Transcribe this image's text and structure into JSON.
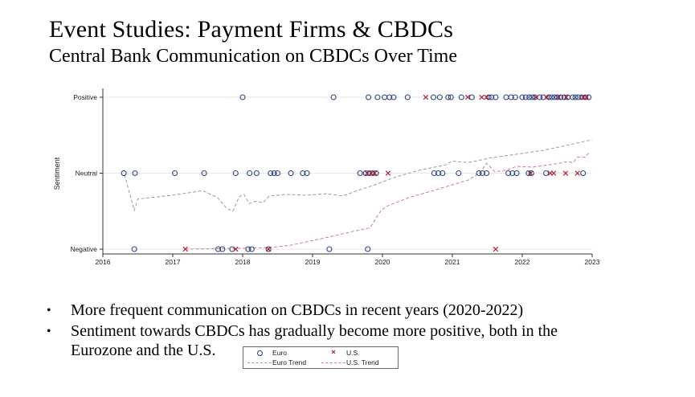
{
  "slide": {
    "title": "Event Studies: Payment Firms & CBDCs",
    "subtitle": "Central Bank Communication on CBDCs Over Time"
  },
  "bullets": [
    "More frequent communication on CBDCs in recent years (2020-2022)",
    "Sentiment towards CBDCs has gradually become more positive, both in the Eurozone and the U.S."
  ],
  "chart_data": {
    "type": "scatter",
    "title": "",
    "xlabel": "",
    "ylabel": "Sentiment",
    "x_ticks": [
      2016,
      2017,
      2018,
      2019,
      2020,
      2021,
      2022,
      2023
    ],
    "y_tick_labels": [
      "Negative",
      "Neutral",
      "Positive"
    ],
    "y_tick_values": [
      0,
      1,
      2
    ],
    "xlim": [
      2015.9,
      2023.05
    ],
    "ylim": [
      -0.1,
      2.12
    ],
    "grid": true,
    "legend_position": "bottom-center-outside",
    "colors": {
      "euro": "#2b4680",
      "us": "#b02437",
      "euro_trend": "#9b9b9b",
      "us_trend": "#c9808d",
      "axis": "#333333",
      "gridline": "#e4dede"
    },
    "legend": {
      "entries": [
        {
          "label": "Euro",
          "marker": "circle"
        },
        {
          "label": "U.S.",
          "marker": "x"
        },
        {
          "label": "Euro Trend",
          "marker": "dash-gray"
        },
        {
          "label": "U.S. Trend",
          "marker": "dash-red"
        }
      ]
    },
    "series": [
      {
        "name": "Euro",
        "type": "scatter",
        "marker": "circle",
        "color": "#2b4680",
        "points": [
          [
            2016.3,
            1
          ],
          [
            2016.45,
            0
          ],
          [
            2016.46,
            1
          ],
          [
            2017.03,
            1
          ],
          [
            2017.45,
            1
          ],
          [
            2017.65,
            0
          ],
          [
            2017.71,
            0
          ],
          [
            2017.85,
            0
          ],
          [
            2017.9,
            1
          ],
          [
            2018.0,
            2
          ],
          [
            2018.08,
            0
          ],
          [
            2018.1,
            1
          ],
          [
            2018.13,
            0
          ],
          [
            2018.2,
            1
          ],
          [
            2018.37,
            0
          ],
          [
            2018.4,
            1
          ],
          [
            2018.45,
            1
          ],
          [
            2018.5,
            1
          ],
          [
            2018.69,
            1
          ],
          [
            2018.86,
            1
          ],
          [
            2018.92,
            1
          ],
          [
            2019.24,
            0
          ],
          [
            2019.3,
            2
          ],
          [
            2019.68,
            1
          ],
          [
            2019.76,
            1
          ],
          [
            2019.79,
            0
          ],
          [
            2019.8,
            2
          ],
          [
            2019.81,
            1
          ],
          [
            2019.86,
            1
          ],
          [
            2019.91,
            1
          ],
          [
            2019.93,
            2
          ],
          [
            2020.03,
            2
          ],
          [
            2020.1,
            2
          ],
          [
            2020.16,
            2
          ],
          [
            2020.36,
            2
          ],
          [
            2020.73,
            2
          ],
          [
            2020.74,
            1
          ],
          [
            2020.8,
            1
          ],
          [
            2020.82,
            2
          ],
          [
            2020.86,
            1
          ],
          [
            2020.94,
            2
          ],
          [
            2020.98,
            2
          ],
          [
            2021.09,
            1
          ],
          [
            2021.13,
            2
          ],
          [
            2021.28,
            2
          ],
          [
            2021.38,
            1
          ],
          [
            2021.43,
            1
          ],
          [
            2021.49,
            1
          ],
          [
            2021.52,
            2
          ],
          [
            2021.56,
            2
          ],
          [
            2021.62,
            2
          ],
          [
            2021.77,
            2
          ],
          [
            2021.8,
            1
          ],
          [
            2021.84,
            2
          ],
          [
            2021.86,
            1
          ],
          [
            2021.9,
            2
          ],
          [
            2021.92,
            1
          ],
          [
            2022.0,
            2
          ],
          [
            2022.05,
            2
          ],
          [
            2022.09,
            1
          ],
          [
            2022.1,
            2
          ],
          [
            2022.13,
            1
          ],
          [
            2022.14,
            2
          ],
          [
            2022.18,
            2
          ],
          [
            2022.25,
            2
          ],
          [
            2022.3,
            2
          ],
          [
            2022.34,
            1
          ],
          [
            2022.38,
            2
          ],
          [
            2022.42,
            2
          ],
          [
            2022.46,
            2
          ],
          [
            2022.5,
            2
          ],
          [
            2022.55,
            2
          ],
          [
            2022.6,
            2
          ],
          [
            2022.65,
            2
          ],
          [
            2022.72,
            2
          ],
          [
            2022.76,
            2
          ],
          [
            2022.8,
            2
          ],
          [
            2022.85,
            2
          ],
          [
            2022.87,
            1
          ],
          [
            2022.9,
            2
          ],
          [
            2022.95,
            2
          ]
        ]
      },
      {
        "name": "U.S.",
        "type": "scatter",
        "marker": "x",
        "color": "#b02437",
        "points": [
          [
            2017.18,
            0
          ],
          [
            2017.9,
            0
          ],
          [
            2018.37,
            0
          ],
          [
            2019.78,
            1
          ],
          [
            2019.84,
            1
          ],
          [
            2019.89,
            1
          ],
          [
            2020.08,
            1
          ],
          [
            2020.62,
            2
          ],
          [
            2021.22,
            2
          ],
          [
            2021.42,
            2
          ],
          [
            2021.49,
            2
          ],
          [
            2021.62,
            0
          ],
          [
            2022.12,
            1
          ],
          [
            2022.2,
            2
          ],
          [
            2022.35,
            2
          ],
          [
            2022.4,
            1
          ],
          [
            2022.45,
            1
          ],
          [
            2022.52,
            2
          ],
          [
            2022.62,
            1
          ],
          [
            2022.63,
            2
          ],
          [
            2022.79,
            1
          ],
          [
            2022.87,
            2
          ],
          [
            2022.92,
            2
          ]
        ]
      },
      {
        "name": "Euro Trend",
        "type": "line",
        "dash": "4 2.5",
        "color": "#9b9b9b",
        "points": [
          [
            2016.31,
            0.98
          ],
          [
            2016.45,
            0.51
          ],
          [
            2016.5,
            0.66
          ],
          [
            2017.0,
            0.71
          ],
          [
            2017.43,
            0.77
          ],
          [
            2017.64,
            0.68
          ],
          [
            2017.77,
            0.54
          ],
          [
            2017.86,
            0.5
          ],
          [
            2017.95,
            0.69
          ],
          [
            2018.02,
            0.72
          ],
          [
            2018.09,
            0.6
          ],
          [
            2018.19,
            0.63
          ],
          [
            2018.29,
            0.61
          ],
          [
            2018.38,
            0.7
          ],
          [
            2018.63,
            0.72
          ],
          [
            2018.91,
            0.71
          ],
          [
            2019.2,
            0.73
          ],
          [
            2019.43,
            0.7
          ],
          [
            2019.61,
            0.76
          ],
          [
            2019.84,
            0.83
          ],
          [
            2020.19,
            0.95
          ],
          [
            2020.53,
            1.04
          ],
          [
            2020.91,
            1.11
          ],
          [
            2020.99,
            1.16
          ],
          [
            2021.23,
            1.14
          ],
          [
            2021.54,
            1.2
          ],
          [
            2021.92,
            1.25
          ],
          [
            2022.3,
            1.3
          ],
          [
            2022.7,
            1.38
          ],
          [
            2023.0,
            1.44
          ]
        ]
      },
      {
        "name": "U.S. Trend",
        "type": "line",
        "dash": "4 2.5",
        "color": "#c9808d",
        "points": [
          [
            2017.18,
            0.0
          ],
          [
            2017.87,
            0.01
          ],
          [
            2018.37,
            0.02
          ],
          [
            2018.68,
            0.05
          ],
          [
            2019.14,
            0.14
          ],
          [
            2019.61,
            0.24
          ],
          [
            2019.82,
            0.28
          ],
          [
            2019.98,
            0.51
          ],
          [
            2020.05,
            0.56
          ],
          [
            2020.38,
            0.68
          ],
          [
            2020.76,
            0.78
          ],
          [
            2021.23,
            0.91
          ],
          [
            2021.4,
            1.01
          ],
          [
            2021.49,
            1.13
          ],
          [
            2021.61,
            1.02
          ],
          [
            2021.77,
            1.04
          ],
          [
            2021.92,
            1.09
          ],
          [
            2022.15,
            1.08
          ],
          [
            2022.38,
            1.11
          ],
          [
            2022.53,
            1.13
          ],
          [
            2022.61,
            1.15
          ],
          [
            2022.73,
            1.14
          ],
          [
            2022.79,
            1.21
          ],
          [
            2022.9,
            1.21
          ],
          [
            2022.96,
            1.28
          ]
        ]
      }
    ]
  }
}
